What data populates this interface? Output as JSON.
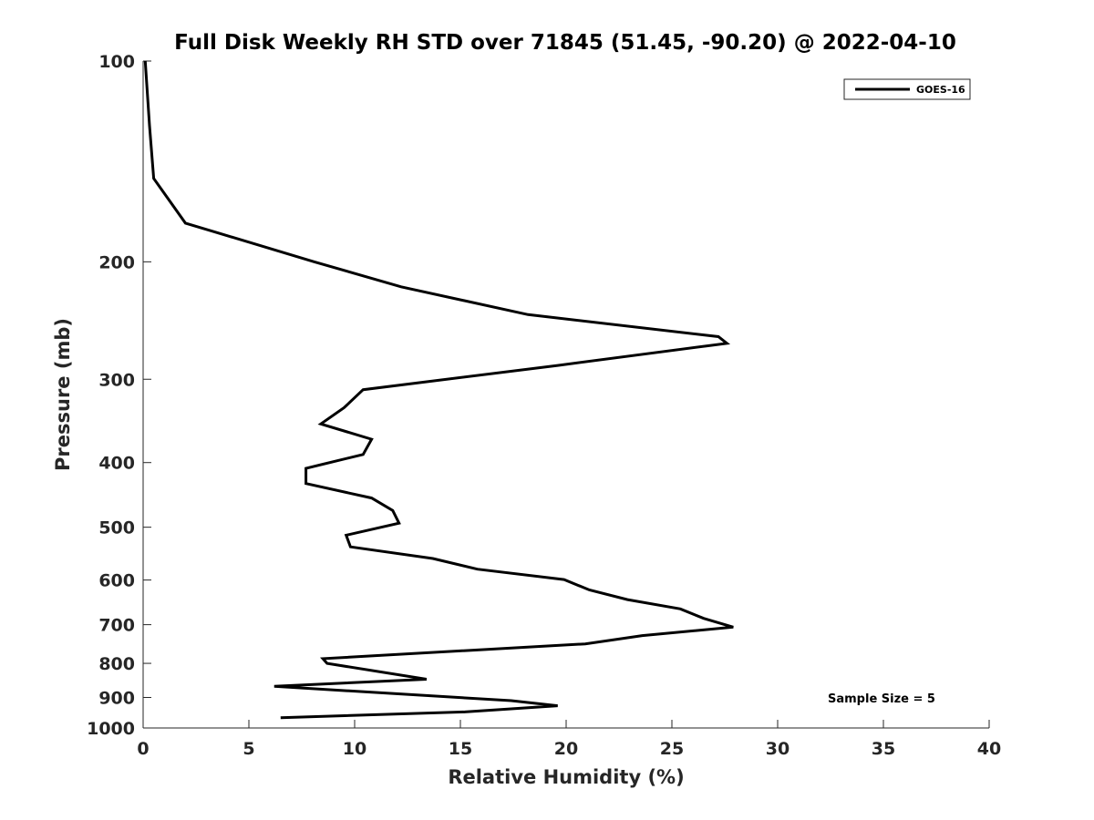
{
  "chart_data": {
    "type": "line",
    "title": "Full Disk Weekly RH STD over 71845 (51.45, -90.20) @ 2022-04-10",
    "xlabel": "Relative Humidity (%)",
    "ylabel": "Pressure (mb)",
    "xlim": [
      0,
      40
    ],
    "ylim": [
      100,
      1000
    ],
    "y_scale": "log",
    "y_reversed": true,
    "grid": false,
    "legend_position": "top-right",
    "annotation": "Sample Size = 5",
    "x_ticks": [
      {
        "value": 0,
        "label": "0"
      },
      {
        "value": 5,
        "label": "5"
      },
      {
        "value": 10,
        "label": "10"
      },
      {
        "value": 15,
        "label": "15"
      },
      {
        "value": 20,
        "label": "20"
      },
      {
        "value": 25,
        "label": "25"
      },
      {
        "value": 30,
        "label": "30"
      },
      {
        "value": 35,
        "label": "35"
      },
      {
        "value": 40,
        "label": "40"
      }
    ],
    "y_ticks": [
      {
        "value": 100,
        "label": "100"
      },
      {
        "value": 200,
        "label": "200"
      },
      {
        "value": 300,
        "label": "300"
      },
      {
        "value": 400,
        "label": "400"
      },
      {
        "value": 500,
        "label": "500"
      },
      {
        "value": 600,
        "label": "600"
      },
      {
        "value": 700,
        "label": "700"
      },
      {
        "value": 800,
        "label": "800"
      },
      {
        "value": 900,
        "label": "900"
      },
      {
        "value": 1000,
        "label": "1000"
      }
    ],
    "series": [
      {
        "name": "GOES-16",
        "color": "#000000",
        "points": [
          [
            0.1,
            100
          ],
          [
            0.3,
            125
          ],
          [
            0.5,
            150
          ],
          [
            2.0,
            175
          ],
          [
            8.1,
            200
          ],
          [
            12.2,
            218
          ],
          [
            18.2,
            240
          ],
          [
            27.2,
            259
          ],
          [
            27.6,
            265
          ],
          [
            19.6,
            286
          ],
          [
            10.4,
            311
          ],
          [
            9.5,
            331
          ],
          [
            8.4,
            350
          ],
          [
            10.8,
            369
          ],
          [
            10.4,
            389
          ],
          [
            7.7,
            408
          ],
          [
            7.7,
            430
          ],
          [
            10.8,
            452
          ],
          [
            11.8,
            472
          ],
          [
            12.1,
            493
          ],
          [
            9.6,
            514
          ],
          [
            9.8,
            535
          ],
          [
            13.7,
            557
          ],
          [
            15.8,
            578
          ],
          [
            19.9,
            599
          ],
          [
            21.1,
            621
          ],
          [
            22.9,
            642
          ],
          [
            25.4,
            663
          ],
          [
            26.5,
            685
          ],
          [
            27.9,
            706
          ],
          [
            23.6,
            727
          ],
          [
            20.9,
            748
          ],
          [
            8.5,
            787
          ],
          [
            8.7,
            800
          ],
          [
            13.4,
            845
          ],
          [
            6.2,
            866
          ],
          [
            17.4,
            910
          ],
          [
            19.6,
            926
          ],
          [
            15.2,
            946
          ],
          [
            6.5,
            965
          ]
        ]
      }
    ]
  }
}
